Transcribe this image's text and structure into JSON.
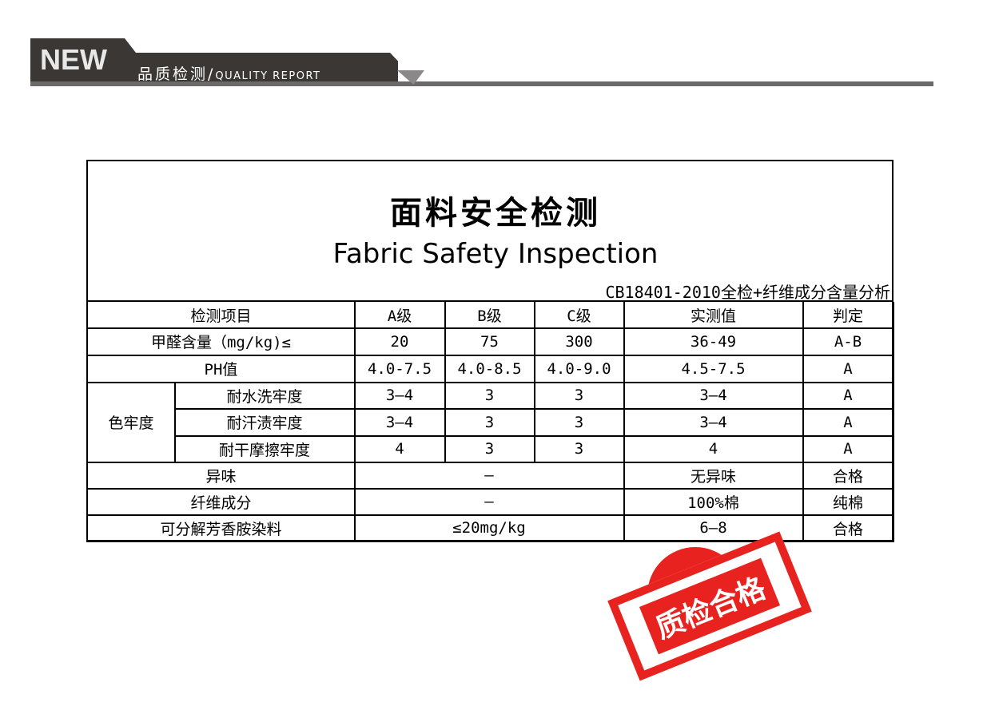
{
  "banner": {
    "new": "NEW",
    "title_cn": "品质检测/",
    "title_en": "QUALITY REPORT"
  },
  "doc": {
    "title_cn": "面料安全检测",
    "title_en": "Fabric Safety Inspection",
    "standard": "CB18401-2010全检+纤维成分含量分析"
  },
  "table": {
    "headers": [
      "检测项目",
      "A级",
      "B级",
      "C级",
      "实测值",
      "判定"
    ],
    "group": "色牢度",
    "rows": [
      {
        "item": "甲醛含量（mg/kg)≤",
        "a": "20",
        "b": "75",
        "c": "300",
        "measured": "36-49",
        "result": "A-B"
      },
      {
        "item": "PH值",
        "a": "4.0-7.5",
        "b": "4.0-8.5",
        "c": "4.0-9.0",
        "measured": "4.5-7.5",
        "result": "A"
      },
      {
        "item": "耐水洗牢度",
        "a": "3—4",
        "b": "3",
        "c": "3",
        "measured": "3—4",
        "result": "A"
      },
      {
        "item": "耐汗渍牢度",
        "a": "3—4",
        "b": "3",
        "c": "3",
        "measured": "3—4",
        "result": "A"
      },
      {
        "item": "耐干摩擦牢度",
        "a": "4",
        "b": "3",
        "c": "3",
        "measured": "4",
        "result": "A"
      },
      {
        "item": "异味",
        "span": "—",
        "measured": "无异味",
        "result": "合格"
      },
      {
        "item": "纤维成分",
        "span": "—",
        "measured": "100%棉",
        "result": "纯棉"
      },
      {
        "item": "可分解芳香胺染料",
        "span": "≤20mg/kg",
        "measured": "6—8",
        "result": "合格"
      }
    ]
  },
  "stamp": {
    "text": "质检合格",
    "color": "#e8231f"
  }
}
